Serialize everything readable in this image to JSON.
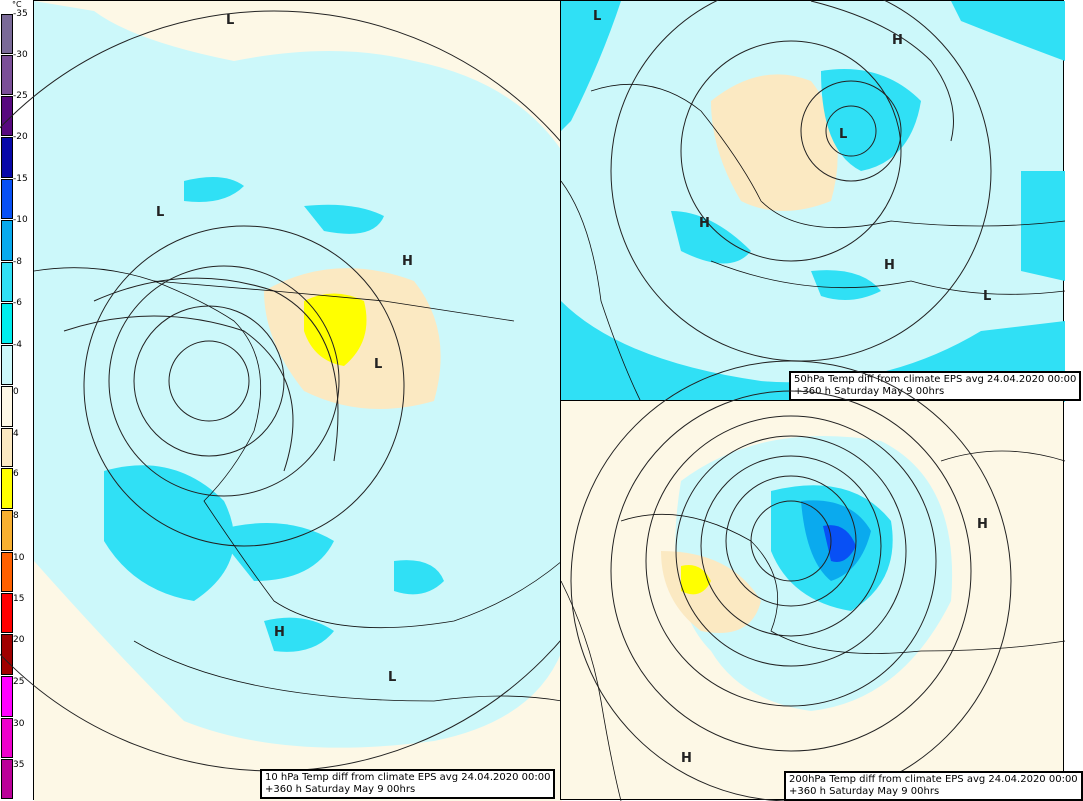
{
  "legend": {
    "unit": "°C",
    "bins": [
      {
        "label": "-35",
        "color": "#7a6a98"
      },
      {
        "label": "-30",
        "color": "#7b4f98"
      },
      {
        "label": "-25",
        "color": "#57097f"
      },
      {
        "label": "-20",
        "color": "#0808a8"
      },
      {
        "label": "-15",
        "color": "#0850f5"
      },
      {
        "label": "-10",
        "color": "#08aaee"
      },
      {
        "label": "-8",
        "color": "#30e0f5"
      },
      {
        "label": "-6",
        "color": "#00eeee"
      },
      {
        "label": "-4",
        "color": "#ccf8fa"
      },
      {
        "label": "0",
        "color": "#fdf8e6"
      },
      {
        "label": "4",
        "color": "#fbe9c2"
      },
      {
        "label": "6",
        "color": "#ffff00"
      },
      {
        "label": "8",
        "color": "#f8b030"
      },
      {
        "label": "10",
        "color": "#ff6000"
      },
      {
        "label": "15",
        "color": "#ff0000"
      },
      {
        "label": "20",
        "color": "#a00000"
      },
      {
        "label": "25",
        "color": "#ff00ff"
      },
      {
        "label": "30",
        "color": "#ee00cc"
      },
      {
        "label": "35",
        "color": "#bb0099"
      }
    ]
  },
  "panels": {
    "left": {
      "caption_line1": "10 hPa Temp diff from climate EPS avg 24.04.2020 00:00",
      "caption_line2": "+360 h Saturday May 9 00hrs",
      "markers": [
        "L",
        "L",
        "H",
        "L",
        "H",
        "L"
      ]
    },
    "top_right": {
      "caption_line1": "50hPa Temp diff from climate EPS avg 24.04.2020 00:00",
      "caption_line2": "+360 h Saturday May 9 00hrs",
      "markers": [
        "L",
        "H",
        "L",
        "H",
        "H",
        "L"
      ]
    },
    "bottom_right": {
      "caption_line1": "200hPa Temp diff from climate EPS avg 24.04.2020 00:00",
      "caption_line2": "+360 h Saturday May 9 00hrs",
      "markers": [
        "H",
        "H"
      ]
    }
  }
}
